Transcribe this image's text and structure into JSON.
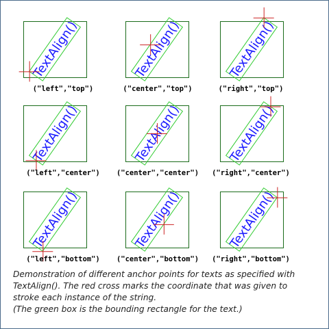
{
  "demo_string": "TextAlign()",
  "colors": {
    "frame_border": "#4a6a8a",
    "cell_box": "#1a6b1a",
    "bounding_box": "#33cc33",
    "anchor_cross": "#cc2222",
    "demo_text": "#1a1aff"
  },
  "cells": [
    {
      "label": "(\"left\",\"top\")",
      "halign": "left",
      "valign": "top"
    },
    {
      "label": "(\"center\",\"top\")",
      "halign": "center",
      "valign": "top"
    },
    {
      "label": "(\"right\",\"top\")",
      "halign": "right",
      "valign": "top"
    },
    {
      "label": "(\"left\",\"center\")",
      "halign": "left",
      "valign": "center"
    },
    {
      "label": "(\"center\",\"center\")",
      "halign": "center",
      "valign": "center"
    },
    {
      "label": "(\"right\",\"center\")",
      "halign": "right",
      "valign": "center"
    },
    {
      "label": "(\"left\",\"bottom\")",
      "halign": "left",
      "valign": "bottom"
    },
    {
      "label": "(\"center\",\"bottom\")",
      "halign": "center",
      "valign": "bottom"
    },
    {
      "label": "(\"right\",\"bottom\")",
      "halign": "right",
      "valign": "bottom"
    }
  ],
  "caption": {
    "line1": "Demonstration of different anchor points for texts as specified with",
    "line2": "TextAlign(). The red cross marks the coordinate that was given to",
    "line3": "stroke each instance of the string.",
    "line4": "(The green box is the bounding rectangle for the text.)"
  }
}
